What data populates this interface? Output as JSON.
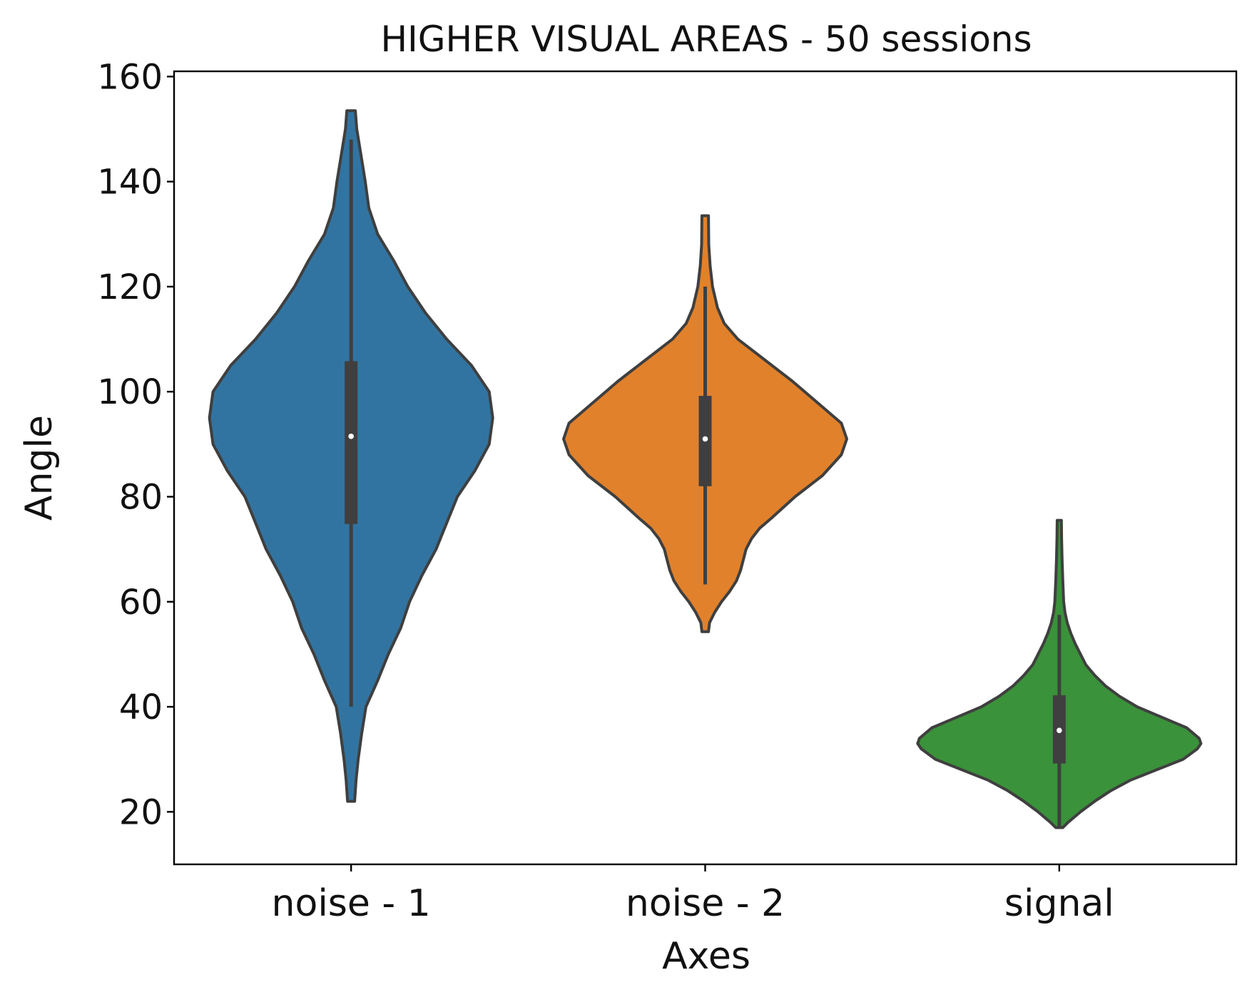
{
  "chart_data": {
    "type": "violin",
    "title": "HIGHER VISUAL AREAS - 50 sessions",
    "xlabel": "Axes",
    "ylabel": "Angle",
    "ylim": [
      10,
      161
    ],
    "yticks": [
      20,
      40,
      60,
      80,
      100,
      120,
      140,
      160
    ],
    "ytick_labels": [
      "20",
      "40",
      "60",
      "80",
      "100",
      "120",
      "140",
      "160"
    ],
    "categories": [
      "noise - 1",
      "noise - 2",
      "signal"
    ],
    "grid": false,
    "series": [
      {
        "category": "noise - 1",
        "color": "#3274a1",
        "median": 91.5,
        "q1": 74.8,
        "q3": 105.8,
        "whisker_low": 40.0,
        "whisker_high": 148.0,
        "min": 22.0,
        "max": 153.5,
        "density": [
          [
            22,
            0.01
          ],
          [
            26,
            0.014
          ],
          [
            30,
            0.02
          ],
          [
            35,
            0.03
          ],
          [
            40,
            0.042
          ],
          [
            45,
            0.075
          ],
          [
            50,
            0.105
          ],
          [
            55,
            0.14
          ],
          [
            60,
            0.165
          ],
          [
            65,
            0.2
          ],
          [
            70,
            0.24
          ],
          [
            75,
            0.27
          ],
          [
            80,
            0.3
          ],
          [
            85,
            0.35
          ],
          [
            90,
            0.39
          ],
          [
            95,
            0.4
          ],
          [
            100,
            0.39
          ],
          [
            105,
            0.34
          ],
          [
            110,
            0.27
          ],
          [
            115,
            0.21
          ],
          [
            120,
            0.16
          ],
          [
            125,
            0.12
          ],
          [
            130,
            0.075
          ],
          [
            135,
            0.05
          ],
          [
            140,
            0.04
          ],
          [
            145,
            0.028
          ],
          [
            150,
            0.016
          ],
          [
            153.5,
            0.012
          ]
        ]
      },
      {
        "category": "noise - 2",
        "color": "#e1812c",
        "median": 91.0,
        "q1": 82.0,
        "q3": 99.2,
        "whisker_low": 63.3,
        "whisker_high": 120.0,
        "min": 54.3,
        "max": 133.5,
        "density": [
          [
            54.3,
            0.012
          ],
          [
            56,
            0.016
          ],
          [
            58,
            0.035
          ],
          [
            60,
            0.06
          ],
          [
            62,
            0.09
          ],
          [
            64,
            0.115
          ],
          [
            66,
            0.13
          ],
          [
            68,
            0.14
          ],
          [
            70,
            0.15
          ],
          [
            72,
            0.17
          ],
          [
            74,
            0.2
          ],
          [
            76,
            0.245
          ],
          [
            80,
            0.33
          ],
          [
            84,
            0.43
          ],
          [
            88,
            0.5
          ],
          [
            91,
            0.52
          ],
          [
            94,
            0.5
          ],
          [
            98,
            0.41
          ],
          [
            102,
            0.32
          ],
          [
            106,
            0.22
          ],
          [
            110,
            0.12
          ],
          [
            113,
            0.07
          ],
          [
            116,
            0.045
          ],
          [
            120,
            0.027
          ],
          [
            124,
            0.018
          ],
          [
            128,
            0.013
          ],
          [
            133.5,
            0.012
          ]
        ]
      },
      {
        "category": "signal",
        "color": "#3a923a",
        "median": 35.5,
        "q1": 29.2,
        "q3": 42.2,
        "whisker_low": 17.0,
        "whisker_high": 57.5,
        "min": 17.0,
        "max": 75.5,
        "density": [
          [
            17,
            0.02
          ],
          [
            18,
            0.05
          ],
          [
            20,
            0.12
          ],
          [
            22,
            0.2
          ],
          [
            24,
            0.29
          ],
          [
            26,
            0.4
          ],
          [
            28,
            0.55
          ],
          [
            30,
            0.7
          ],
          [
            32,
            0.78
          ],
          [
            33,
            0.8
          ],
          [
            34,
            0.79
          ],
          [
            36,
            0.72
          ],
          [
            38,
            0.58
          ],
          [
            40,
            0.44
          ],
          [
            42,
            0.34
          ],
          [
            44,
            0.26
          ],
          [
            46,
            0.2
          ],
          [
            48,
            0.15
          ],
          [
            50,
            0.12
          ],
          [
            52,
            0.09
          ],
          [
            54,
            0.065
          ],
          [
            56,
            0.045
          ],
          [
            58,
            0.032
          ],
          [
            60,
            0.025
          ],
          [
            64,
            0.02
          ],
          [
            68,
            0.016
          ],
          [
            72,
            0.013
          ],
          [
            75.5,
            0.012
          ]
        ]
      }
    ]
  }
}
